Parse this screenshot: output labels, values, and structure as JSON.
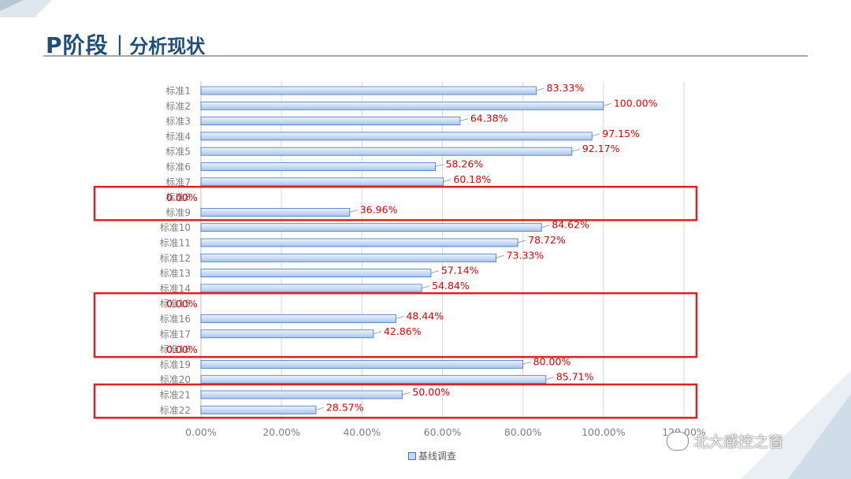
{
  "header": {
    "title_main": "P阶段",
    "title_sep": "|",
    "title_sub": "分析现状"
  },
  "chart_data": {
    "type": "bar",
    "orientation": "horizontal",
    "categories": [
      "标准1",
      "标准2",
      "标准3",
      "标准4",
      "标准5",
      "标准6",
      "标准7",
      "标准8",
      "标准9",
      "标准10",
      "标准11",
      "标准12",
      "标准13",
      "标准14",
      "标准15",
      "标准16",
      "标准17",
      "标准18",
      "标准19",
      "标准20",
      "标准21",
      "标准22"
    ],
    "series": [
      {
        "name": "基线调查",
        "values": [
          0.8333,
          1.0,
          0.6438,
          0.9715,
          0.9217,
          0.5826,
          0.6018,
          0.0,
          0.3696,
          0.8462,
          0.7872,
          0.7333,
          0.5714,
          0.5484,
          0.0,
          0.4844,
          0.4286,
          0.0,
          0.8,
          0.8571,
          0.5,
          0.2857
        ],
        "labels": [
          "83.33%",
          "100.00%",
          "64.38%",
          "97.15%",
          "92.17%",
          "58.26%",
          "60.18%",
          "0.00%",
          "36.96%",
          "84.62%",
          "78.72%",
          "73.33%",
          "57.14%",
          "54.84%",
          "0.00%",
          "48.44%",
          "42.86%",
          "0.00%",
          "80.00%",
          "85.71%",
          "50.00%",
          "28.57%"
        ]
      }
    ],
    "xlim": [
      0,
      1.2
    ],
    "xticks": [
      "0.00%",
      "20.00%",
      "40.00%",
      "60.00%",
      "80.00%",
      "100.00%",
      "120.00%"
    ],
    "grid": true,
    "legend_position": "bottom",
    "colors": {
      "bar_fill_light": "#dce8f8",
      "bar_fill_dark": "#a9c4eb",
      "bar_stroke": "#4472c4",
      "label": "#e00000",
      "grid": "#d9d9d9",
      "axis_text": "#7f7f7f",
      "highlight_box": "#e02020"
    },
    "highlight_groups": [
      [
        "标准8",
        "标准9"
      ],
      [
        "标准15",
        "标准16",
        "标准17",
        "标准18"
      ],
      [
        "标准21",
        "标准22"
      ]
    ]
  },
  "watermark": {
    "text": "北大感控之窗",
    "icon": "wechat-icon"
  }
}
